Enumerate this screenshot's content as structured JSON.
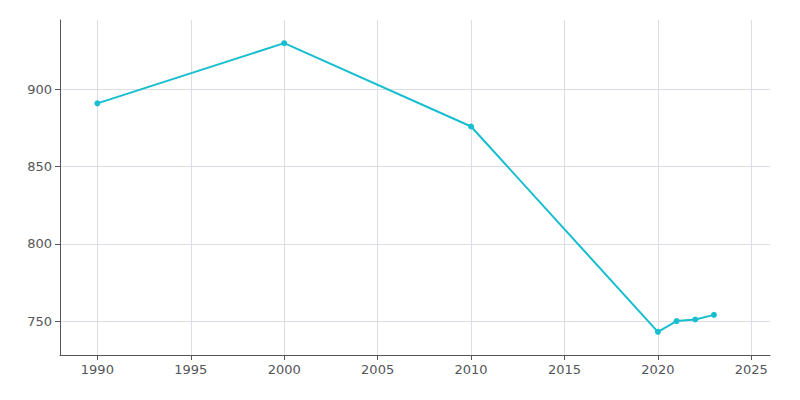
{
  "chart_data": {
    "type": "line",
    "x": [
      1990,
      2000,
      2010,
      2020,
      2021,
      2022,
      2023
    ],
    "values": [
      891,
      930,
      876,
      743,
      750,
      751,
      754
    ],
    "color": "#17becf",
    "marker": "circle",
    "xlim": [
      1988,
      2026
    ],
    "ylim": [
      728,
      945
    ],
    "xticks": [
      1990,
      1995,
      2000,
      2005,
      2010,
      2015,
      2020,
      2025
    ],
    "yticks": [
      750,
      800,
      850,
      900
    ],
    "grid": true
  }
}
